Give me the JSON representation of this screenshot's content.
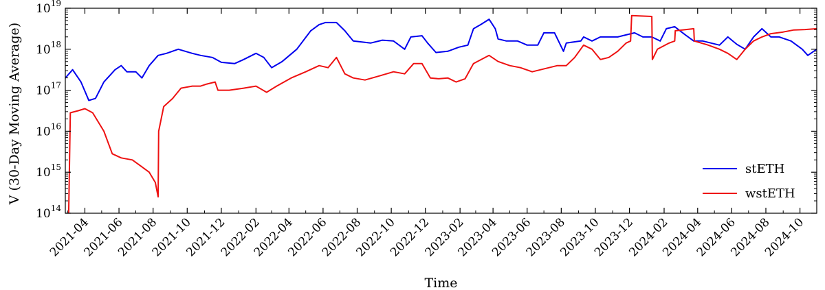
{
  "chart_data": {
    "type": "line",
    "title": "",
    "xlabel": "Time",
    "ylabel": "V (30-Day Moving Average)",
    "yscale": "log",
    "ylim_exp": [
      14,
      19
    ],
    "xlim": [
      "2021-02-25",
      "2024-10-31"
    ],
    "y_ticks": [
      {
        "exp": 14,
        "base": "10",
        "sup": "14"
      },
      {
        "exp": 15,
        "base": "10",
        "sup": "15"
      },
      {
        "exp": 16,
        "base": "10",
        "sup": "16"
      },
      {
        "exp": 17,
        "base": "10",
        "sup": "17"
      },
      {
        "exp": 18,
        "base": "10",
        "sup": "18"
      },
      {
        "exp": 19,
        "base": "10",
        "sup": "19"
      }
    ],
    "x_ticks": [
      "2021-04",
      "2021-06",
      "2021-08",
      "2021-10",
      "2021-12",
      "2022-02",
      "2022-04",
      "2022-06",
      "2022-08",
      "2022-10",
      "2022-12",
      "2023-02",
      "2023-04",
      "2023-06",
      "2023-08",
      "2023-10",
      "2023-12",
      "2024-02",
      "2024-04",
      "2024-06",
      "2024-08",
      "2024-10"
    ],
    "legend_position": "lower-right",
    "grid": false,
    "series": [
      {
        "name": "stETH",
        "color": "#0000ee",
        "points": [
          [
            "2021-02-25",
            17.3
          ],
          [
            "2021-03-10",
            17.5
          ],
          [
            "2021-03-25",
            17.2
          ],
          [
            "2021-04-08",
            16.75
          ],
          [
            "2021-04-20",
            16.8
          ],
          [
            "2021-05-05",
            17.2
          ],
          [
            "2021-05-25",
            17.5
          ],
          [
            "2021-06-05",
            17.6
          ],
          [
            "2021-06-15",
            17.45
          ],
          [
            "2021-07-01",
            17.45
          ],
          [
            "2021-07-12",
            17.3
          ],
          [
            "2021-07-25",
            17.6
          ],
          [
            "2021-08-10",
            17.85
          ],
          [
            "2021-08-25",
            17.9
          ],
          [
            "2021-09-15",
            18.0
          ],
          [
            "2021-10-10",
            17.9
          ],
          [
            "2021-10-25",
            17.85
          ],
          [
            "2021-11-15",
            17.8
          ],
          [
            "2021-12-01",
            17.68
          ],
          [
            "2021-12-25",
            17.65
          ],
          [
            "2022-01-10",
            17.75
          ],
          [
            "2022-02-01",
            17.9
          ],
          [
            "2022-02-15",
            17.8
          ],
          [
            "2022-03-01",
            17.55
          ],
          [
            "2022-03-20",
            17.7
          ],
          [
            "2022-04-15",
            18.0
          ],
          [
            "2022-05-10",
            18.45
          ],
          [
            "2022-05-25",
            18.6
          ],
          [
            "2022-06-05",
            18.65
          ],
          [
            "2022-06-25",
            18.65
          ],
          [
            "2022-07-10",
            18.45
          ],
          [
            "2022-07-25",
            18.2
          ],
          [
            "2022-08-25",
            18.15
          ],
          [
            "2022-09-15",
            18.22
          ],
          [
            "2022-10-05",
            18.2
          ],
          [
            "2022-10-25",
            18.0
          ],
          [
            "2022-11-05",
            18.3
          ],
          [
            "2022-11-25",
            18.33
          ],
          [
            "2022-12-05",
            18.15
          ],
          [
            "2022-12-20",
            17.92
          ],
          [
            "2023-01-10",
            17.95
          ],
          [
            "2023-01-30",
            18.05
          ],
          [
            "2023-02-15",
            18.1
          ],
          [
            "2023-02-25",
            18.5
          ],
          [
            "2023-03-10",
            18.6
          ],
          [
            "2023-03-25",
            18.73
          ],
          [
            "2023-04-05",
            18.5
          ],
          [
            "2023-04-10",
            18.25
          ],
          [
            "2023-04-25",
            18.2
          ],
          [
            "2023-05-15",
            18.2
          ],
          [
            "2023-06-01",
            18.1
          ],
          [
            "2023-06-20",
            18.1
          ],
          [
            "2023-07-01",
            18.4
          ],
          [
            "2023-07-20",
            18.4
          ],
          [
            "2023-08-05",
            17.95
          ],
          [
            "2023-08-10",
            18.15
          ],
          [
            "2023-09-05",
            18.2
          ],
          [
            "2023-09-10",
            18.3
          ],
          [
            "2023-09-25",
            18.2
          ],
          [
            "2023-10-10",
            18.3
          ],
          [
            "2023-11-10",
            18.3
          ],
          [
            "2023-12-10",
            18.4
          ],
          [
            "2023-12-25",
            18.3
          ],
          [
            "2024-01-10",
            18.3
          ],
          [
            "2024-01-25",
            18.2
          ],
          [
            "2024-02-05",
            18.5
          ],
          [
            "2024-02-20",
            18.55
          ],
          [
            "2024-03-10",
            18.35
          ],
          [
            "2024-03-25",
            18.2
          ],
          [
            "2024-04-10",
            18.2
          ],
          [
            "2024-04-25",
            18.15
          ],
          [
            "2024-05-10",
            18.1
          ],
          [
            "2024-05-25",
            18.3
          ],
          [
            "2024-06-10",
            18.12
          ],
          [
            "2024-06-25",
            18.0
          ],
          [
            "2024-07-10",
            18.3
          ],
          [
            "2024-07-25",
            18.5
          ],
          [
            "2024-08-10",
            18.3
          ],
          [
            "2024-08-25",
            18.3
          ],
          [
            "2024-09-15",
            18.2
          ],
          [
            "2024-10-05",
            18.0
          ],
          [
            "2024-10-15",
            17.85
          ],
          [
            "2024-10-31",
            18.0
          ]
        ]
      },
      {
        "name": "wstETH",
        "color": "#ee1111",
        "points": [
          [
            "2021-03-03",
            14.0
          ],
          [
            "2021-03-06",
            16.45
          ],
          [
            "2021-03-20",
            16.5
          ],
          [
            "2021-04-01",
            16.55
          ],
          [
            "2021-04-15",
            16.45
          ],
          [
            "2021-05-05",
            16.0
          ],
          [
            "2021-05-20",
            15.45
          ],
          [
            "2021-06-05",
            15.35
          ],
          [
            "2021-06-25",
            15.3
          ],
          [
            "2021-07-10",
            15.15
          ],
          [
            "2021-07-25",
            15.0
          ],
          [
            "2021-08-05",
            14.75
          ],
          [
            "2021-08-10",
            14.4
          ],
          [
            "2021-08-11",
            16.0
          ],
          [
            "2021-08-20",
            16.6
          ],
          [
            "2021-09-05",
            16.8
          ],
          [
            "2021-09-20",
            17.05
          ],
          [
            "2021-10-10",
            17.1
          ],
          [
            "2021-10-25",
            17.1
          ],
          [
            "2021-11-05",
            17.15
          ],
          [
            "2021-11-20",
            17.2
          ],
          [
            "2021-11-25",
            17.0
          ],
          [
            "2021-12-15",
            17.0
          ],
          [
            "2022-01-10",
            17.05
          ],
          [
            "2022-02-01",
            17.1
          ],
          [
            "2022-02-20",
            16.95
          ],
          [
            "2022-03-10",
            17.1
          ],
          [
            "2022-04-05",
            17.3
          ],
          [
            "2022-05-01",
            17.45
          ],
          [
            "2022-05-25",
            17.6
          ],
          [
            "2022-06-10",
            17.55
          ],
          [
            "2022-06-25",
            17.8
          ],
          [
            "2022-07-10",
            17.4
          ],
          [
            "2022-07-25",
            17.3
          ],
          [
            "2022-08-15",
            17.25
          ],
          [
            "2022-09-10",
            17.35
          ],
          [
            "2022-10-05",
            17.45
          ],
          [
            "2022-10-25",
            17.4
          ],
          [
            "2022-11-10",
            17.65
          ],
          [
            "2022-11-25",
            17.65
          ],
          [
            "2022-12-10",
            17.3
          ],
          [
            "2022-12-25",
            17.28
          ],
          [
            "2023-01-10",
            17.3
          ],
          [
            "2023-01-25",
            17.2
          ],
          [
            "2023-02-10",
            17.28
          ],
          [
            "2023-02-25",
            17.65
          ],
          [
            "2023-03-25",
            17.85
          ],
          [
            "2023-04-10",
            17.7
          ],
          [
            "2023-05-01",
            17.6
          ],
          [
            "2023-05-20",
            17.55
          ],
          [
            "2023-06-10",
            17.45
          ],
          [
            "2023-07-10",
            17.55
          ],
          [
            "2023-07-25",
            17.6
          ],
          [
            "2023-08-10",
            17.6
          ],
          [
            "2023-08-25",
            17.8
          ],
          [
            "2023-09-10",
            18.1
          ],
          [
            "2023-09-25",
            18.0
          ],
          [
            "2023-10-10",
            17.75
          ],
          [
            "2023-10-25",
            17.8
          ],
          [
            "2023-11-10",
            17.95
          ],
          [
            "2023-11-25",
            18.15
          ],
          [
            "2023-12-03",
            18.2
          ],
          [
            "2023-12-05",
            18.82
          ],
          [
            "2024-01-10",
            18.8
          ],
          [
            "2024-01-11",
            17.75
          ],
          [
            "2024-01-20",
            18.0
          ],
          [
            "2024-02-10",
            18.15
          ],
          [
            "2024-02-20",
            18.2
          ],
          [
            "2024-02-21",
            18.45
          ],
          [
            "2024-03-25",
            18.5
          ],
          [
            "2024-03-26",
            18.2
          ],
          [
            "2024-04-20",
            18.1
          ],
          [
            "2024-05-10",
            18.0
          ],
          [
            "2024-05-25",
            17.9
          ],
          [
            "2024-06-10",
            17.75
          ],
          [
            "2024-06-25",
            18.0
          ],
          [
            "2024-07-10",
            18.2
          ],
          [
            "2024-07-25",
            18.3
          ],
          [
            "2024-08-10",
            18.38
          ],
          [
            "2024-09-01",
            18.42
          ],
          [
            "2024-09-20",
            18.47
          ],
          [
            "2024-10-10",
            18.48
          ],
          [
            "2024-10-31",
            18.5
          ]
        ]
      }
    ]
  }
}
